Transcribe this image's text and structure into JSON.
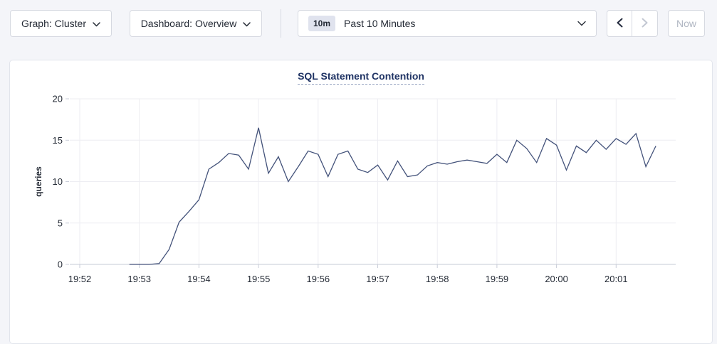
{
  "toolbar": {
    "graph_dropdown_label": "Graph: Cluster",
    "dashboard_dropdown_label": "Dashboard: Overview",
    "time_window_badge": "10m",
    "time_window_label": "Past 10 Minutes",
    "now_button_label": "Now"
  },
  "colors": {
    "page_bg": "#f4f5f9",
    "series_line": "#43527a",
    "title_text": "#1f3364",
    "gridline": "#ededf2",
    "axis_line": "#c6cbd5"
  },
  "chart_data": {
    "type": "line",
    "title": "SQL Statement Contention",
    "ylabel": "queries",
    "ylim": [
      0,
      20
    ],
    "yticks": [
      0,
      5,
      10,
      15,
      20
    ],
    "xticks": [
      "19:52",
      "19:53",
      "19:54",
      "19:55",
      "19:56",
      "19:57",
      "19:58",
      "19:59",
      "20:00",
      "20:01"
    ],
    "x_domain": [
      "19:51:50",
      "20:02:00"
    ],
    "grid": true,
    "legend": "none",
    "series": [
      {
        "name": "queries",
        "color": "#43527a",
        "points": [
          [
            "19:52:50",
            0
          ],
          [
            "19:53:00",
            0
          ],
          [
            "19:53:10",
            0
          ],
          [
            "19:53:20",
            0.1
          ],
          [
            "19:53:30",
            1.8
          ],
          [
            "19:53:40",
            5.1
          ],
          [
            "19:53:50",
            6.4
          ],
          [
            "19:54:00",
            7.8
          ],
          [
            "19:54:10",
            11.5
          ],
          [
            "19:54:20",
            12.3
          ],
          [
            "19:54:30",
            13.4
          ],
          [
            "19:54:40",
            13.2
          ],
          [
            "19:54:50",
            11.5
          ],
          [
            "19:55:00",
            16.5
          ],
          [
            "19:55:10",
            11.0
          ],
          [
            "19:55:20",
            13.0
          ],
          [
            "19:55:30",
            10.0
          ],
          [
            "19:55:40",
            11.8
          ],
          [
            "19:55:50",
            13.7
          ],
          [
            "19:56:00",
            13.3
          ],
          [
            "19:56:10",
            10.6
          ],
          [
            "19:56:20",
            13.3
          ],
          [
            "19:56:30",
            13.7
          ],
          [
            "19:56:40",
            11.5
          ],
          [
            "19:56:50",
            11.1
          ],
          [
            "19:57:00",
            12.0
          ],
          [
            "19:57:10",
            10.2
          ],
          [
            "19:57:20",
            12.5
          ],
          [
            "19:57:30",
            10.6
          ],
          [
            "19:57:40",
            10.8
          ],
          [
            "19:57:50",
            11.9
          ],
          [
            "19:58:00",
            12.3
          ],
          [
            "19:58:10",
            12.1
          ],
          [
            "19:58:20",
            12.4
          ],
          [
            "19:58:30",
            12.6
          ],
          [
            "19:58:40",
            12.4
          ],
          [
            "19:58:50",
            12.2
          ],
          [
            "19:59:00",
            13.3
          ],
          [
            "19:59:10",
            12.3
          ],
          [
            "19:59:20",
            15.0
          ],
          [
            "19:59:30",
            14.0
          ],
          [
            "19:59:40",
            12.3
          ],
          [
            "19:59:50",
            15.2
          ],
          [
            "20:00:00",
            14.4
          ],
          [
            "20:00:10",
            11.4
          ],
          [
            "20:00:20",
            14.3
          ],
          [
            "20:00:30",
            13.5
          ],
          [
            "20:00:40",
            15.0
          ],
          [
            "20:00:50",
            13.9
          ],
          [
            "20:01:00",
            15.2
          ],
          [
            "20:01:10",
            14.5
          ],
          [
            "20:01:20",
            15.8
          ],
          [
            "20:01:30",
            11.8
          ],
          [
            "20:01:40",
            14.3
          ]
        ]
      }
    ]
  }
}
